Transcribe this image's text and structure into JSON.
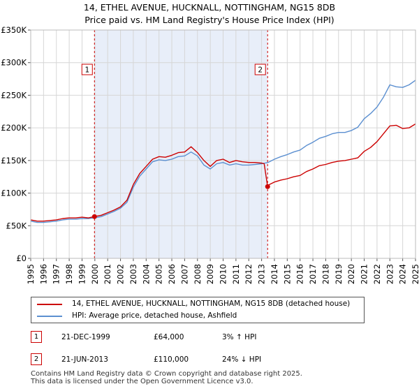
{
  "title": {
    "line1": "14, ETHEL AVENUE, HUCKNALL, NOTTINGHAM, NG15 8DB",
    "line2": "Price paid vs. HM Land Registry's House Price Index (HPI)"
  },
  "chart_data": {
    "type": "line",
    "title": "14, ETHEL AVENUE, HUCKNALL, NOTTINGHAM, NG15 8DB - Price paid vs. HM Land Registry's House Price Index (HPI)",
    "xlabel": "",
    "ylabel": "",
    "xlim": [
      1995,
      2025
    ],
    "ylim": [
      0,
      350000
    ],
    "grid": true,
    "legend_position": "below",
    "x_ticks": [
      "1995",
      "1996",
      "1997",
      "1998",
      "1999",
      "2000",
      "2001",
      "2002",
      "2003",
      "2004",
      "2005",
      "2006",
      "2007",
      "2008",
      "2009",
      "2010",
      "2011",
      "2012",
      "2013",
      "2014",
      "2015",
      "2016",
      "2017",
      "2018",
      "2019",
      "2020",
      "2021",
      "2022",
      "2023",
      "2024",
      "2025"
    ],
    "y_ticks": [
      {
        "value": 0,
        "label": "£0"
      },
      {
        "value": 50000,
        "label": "£50K"
      },
      {
        "value": 100000,
        "label": "£100K"
      },
      {
        "value": 150000,
        "label": "£150K"
      },
      {
        "value": 200000,
        "label": "£200K"
      },
      {
        "value": 250000,
        "label": "£250K"
      },
      {
        "value": 300000,
        "label": "£300K"
      },
      {
        "value": 350000,
        "label": "£350K"
      }
    ],
    "series": [
      {
        "name": "14, ETHEL AVENUE, HUCKNALL, NOTTINGHAM, NG15 8DB (detached house)",
        "color": "#cc0000",
        "x": [
          1995.0,
          1995.5,
          1996.0,
          1996.5,
          1997.0,
          1997.5,
          1998.0,
          1998.5,
          1999.0,
          1999.5,
          1999.97,
          2000.5,
          2001.0,
          2001.5,
          2002.0,
          2002.5,
          2003.0,
          2003.5,
          2004.0,
          2004.5,
          2005.0,
          2005.5,
          2006.0,
          2006.5,
          2007.0,
          2007.5,
          2008.0,
          2008.5,
          2009.0,
          2009.5,
          2010.0,
          2010.5,
          2011.0,
          2011.5,
          2012.0,
          2012.5,
          2013.0,
          2013.2,
          2013.47,
          2013.6,
          2014.0,
          2014.5,
          2015.0,
          2015.5,
          2016.0,
          2016.5,
          2017.0,
          2017.5,
          2018.0,
          2018.5,
          2019.0,
          2019.5,
          2020.0,
          2020.5,
          2021.0,
          2021.5,
          2022.0,
          2022.5,
          2023.0,
          2023.5,
          2024.0,
          2024.5,
          2025.0
        ],
        "y": [
          59000,
          57000,
          57000,
          58000,
          59000,
          61000,
          62000,
          62000,
          63000,
          62000,
          64000,
          66000,
          70000,
          74000,
          79000,
          89000,
          113000,
          130000,
          141000,
          152000,
          156000,
          155000,
          158000,
          162000,
          163000,
          171000,
          162000,
          150000,
          141000,
          150000,
          152000,
          147000,
          150000,
          148000,
          147000,
          147000,
          146000,
          145000,
          110000,
          113000,
          117000,
          120000,
          122000,
          125000,
          127000,
          133000,
          137000,
          142000,
          144000,
          147000,
          149000,
          150000,
          152000,
          154000,
          164000,
          170000,
          179000,
          191000,
          203000,
          204000,
          199000,
          200000,
          206000
        ]
      },
      {
        "name": "HPI: Average price, detached house, Ashfield",
        "color": "#5b8fd0",
        "x": [
          1995.0,
          1995.5,
          1996.0,
          1996.5,
          1997.0,
          1997.5,
          1998.0,
          1998.5,
          1999.0,
          1999.5,
          2000.0,
          2000.5,
          2001.0,
          2001.5,
          2002.0,
          2002.5,
          2003.0,
          2003.5,
          2004.0,
          2004.5,
          2005.0,
          2005.5,
          2006.0,
          2006.5,
          2007.0,
          2007.5,
          2008.0,
          2008.5,
          2009.0,
          2009.5,
          2010.0,
          2010.5,
          2011.0,
          2011.5,
          2012.0,
          2012.5,
          2013.0,
          2013.5,
          2014.0,
          2014.5,
          2015.0,
          2015.5,
          2016.0,
          2016.5,
          2017.0,
          2017.5,
          2018.0,
          2018.5,
          2019.0,
          2019.5,
          2020.0,
          2020.5,
          2021.0,
          2021.5,
          2022.0,
          2022.5,
          2023.0,
          2023.5,
          2024.0,
          2024.5,
          2025.0
        ],
        "y": [
          57000,
          55000,
          55000,
          56000,
          57000,
          59000,
          60000,
          60000,
          61000,
          61000,
          62000,
          64000,
          68000,
          72000,
          77000,
          86000,
          109000,
          126000,
          137000,
          148000,
          151000,
          150000,
          152000,
          156000,
          157000,
          163000,
          157000,
          143000,
          137000,
          145000,
          147000,
          143000,
          145000,
          143000,
          143000,
          144000,
          145000,
          147000,
          152000,
          156000,
          159000,
          163000,
          166000,
          173000,
          178000,
          184000,
          187000,
          191000,
          193000,
          193000,
          196000,
          201000,
          214000,
          222000,
          232000,
          247000,
          266000,
          263000,
          262000,
          266000,
          273000
        ]
      }
    ],
    "annotations": [
      {
        "label": "1",
        "x": 1999.97,
        "y": 64000
      },
      {
        "label": "2",
        "x": 2013.47,
        "y": 110000
      }
    ],
    "shaded_range": [
      1999.97,
      2013.47
    ]
  },
  "legend": {
    "property_label": "14, ETHEL AVENUE, HUCKNALL, NOTTINGHAM, NG15 8DB (detached house)",
    "hpi_label": "HPI: Average price, detached house, Ashfield"
  },
  "sales": [
    {
      "num": "1",
      "date": "21-DEC-1999",
      "price": "£64,000",
      "hpi": "3% ↑ HPI"
    },
    {
      "num": "2",
      "date": "21-JUN-2013",
      "price": "£110,000",
      "hpi": "24% ↓ HPI"
    }
  ],
  "footer": {
    "line1": "Contains HM Land Registry data © Crown copyright and database right 2025.",
    "line2": "This data is licensed under the Open Government Licence v3.0."
  },
  "colors": {
    "property_line": "#cc0000",
    "hpi_line": "#5b8fd0",
    "shade": "#e8eef9",
    "grid": "#d6d6d6"
  }
}
